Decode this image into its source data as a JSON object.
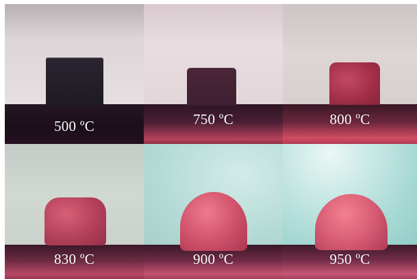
{
  "figure": {
    "panels": [
      {
        "temperature_label": "500 ºC"
      },
      {
        "temperature_label": "750 ºC"
      },
      {
        "temperature_label": "800 ºC"
      },
      {
        "temperature_label": "830 ºC"
      },
      {
        "temperature_label": "900 ºC"
      },
      {
        "temperature_label": "950 ºC"
      }
    ]
  }
}
